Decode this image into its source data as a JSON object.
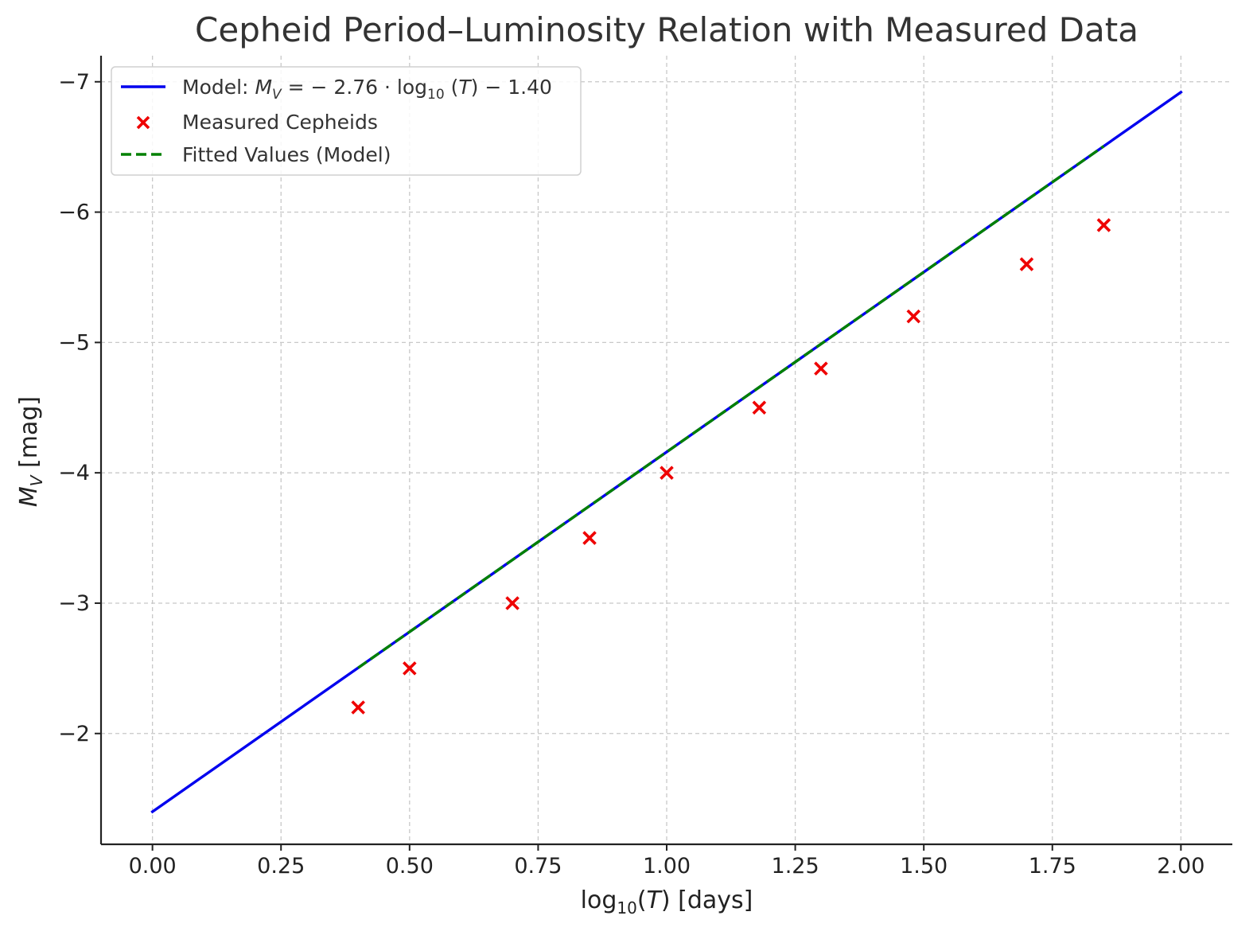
{
  "chart_data": {
    "type": "scatter",
    "title": "Cepheid Period–Luminosity Relation with Measured Data",
    "xlabel": {
      "prefix": "log",
      "sub": "10",
      "mid": "(",
      "var": "T",
      "suffix": ") [days]"
    },
    "ylabel": {
      "var": "M",
      "sub": "V",
      "suffix": " [mag]"
    },
    "xlim": [
      -0.1,
      2.1
    ],
    "ylim": [
      -1.15,
      -7.2
    ],
    "y_inverted": true,
    "xticks": [
      0.0,
      0.25,
      0.5,
      0.75,
      1.0,
      1.25,
      1.5,
      1.75,
      2.0
    ],
    "xtick_labels": [
      "0.00",
      "0.25",
      "0.50",
      "0.75",
      "1.00",
      "1.25",
      "1.50",
      "1.75",
      "2.00"
    ],
    "yticks": [
      -2,
      -3,
      -4,
      -5,
      -6,
      -7
    ],
    "ytick_labels": [
      "−2",
      "−3",
      "−4",
      "−5",
      "−6",
      "−7"
    ],
    "grid": true,
    "legend_position": "top-left",
    "series": [
      {
        "name": "Model: M_V = −2.76 · log10(T) − 1.40",
        "legend": {
          "pre": "Model: ",
          "var": "M",
          "sub": "V",
          "eq": " = − 2.76 · log",
          "sub2": "10",
          "post1": " (",
          "var2": "T",
          "post2": ") − 1.40"
        },
        "kind": "line",
        "color": "#0000ee",
        "x": [
          0.0,
          2.0
        ],
        "y": [
          -1.4,
          -6.92
        ]
      },
      {
        "name": "Measured Cepheids",
        "kind": "scatter",
        "marker": "x",
        "color": "#ee0000",
        "x": [
          0.4,
          0.5,
          0.7,
          0.85,
          1.0,
          1.18,
          1.3,
          1.48,
          1.7,
          1.85
        ],
        "y": [
          -2.2,
          -2.5,
          -3.0,
          -3.5,
          -4.0,
          -4.5,
          -4.8,
          -5.2,
          -5.6,
          -5.9
        ]
      },
      {
        "name": "Fitted Values (Model)",
        "kind": "dashed-line",
        "color": "#008000",
        "x": [
          0.4,
          0.5,
          0.7,
          0.85,
          1.0,
          1.18,
          1.3,
          1.48,
          1.7,
          1.85
        ],
        "y": [
          -2.504,
          -2.78,
          -3.332,
          -3.746,
          -4.16,
          -4.657,
          -4.988,
          -5.485,
          -6.092,
          -6.506
        ]
      }
    ]
  }
}
